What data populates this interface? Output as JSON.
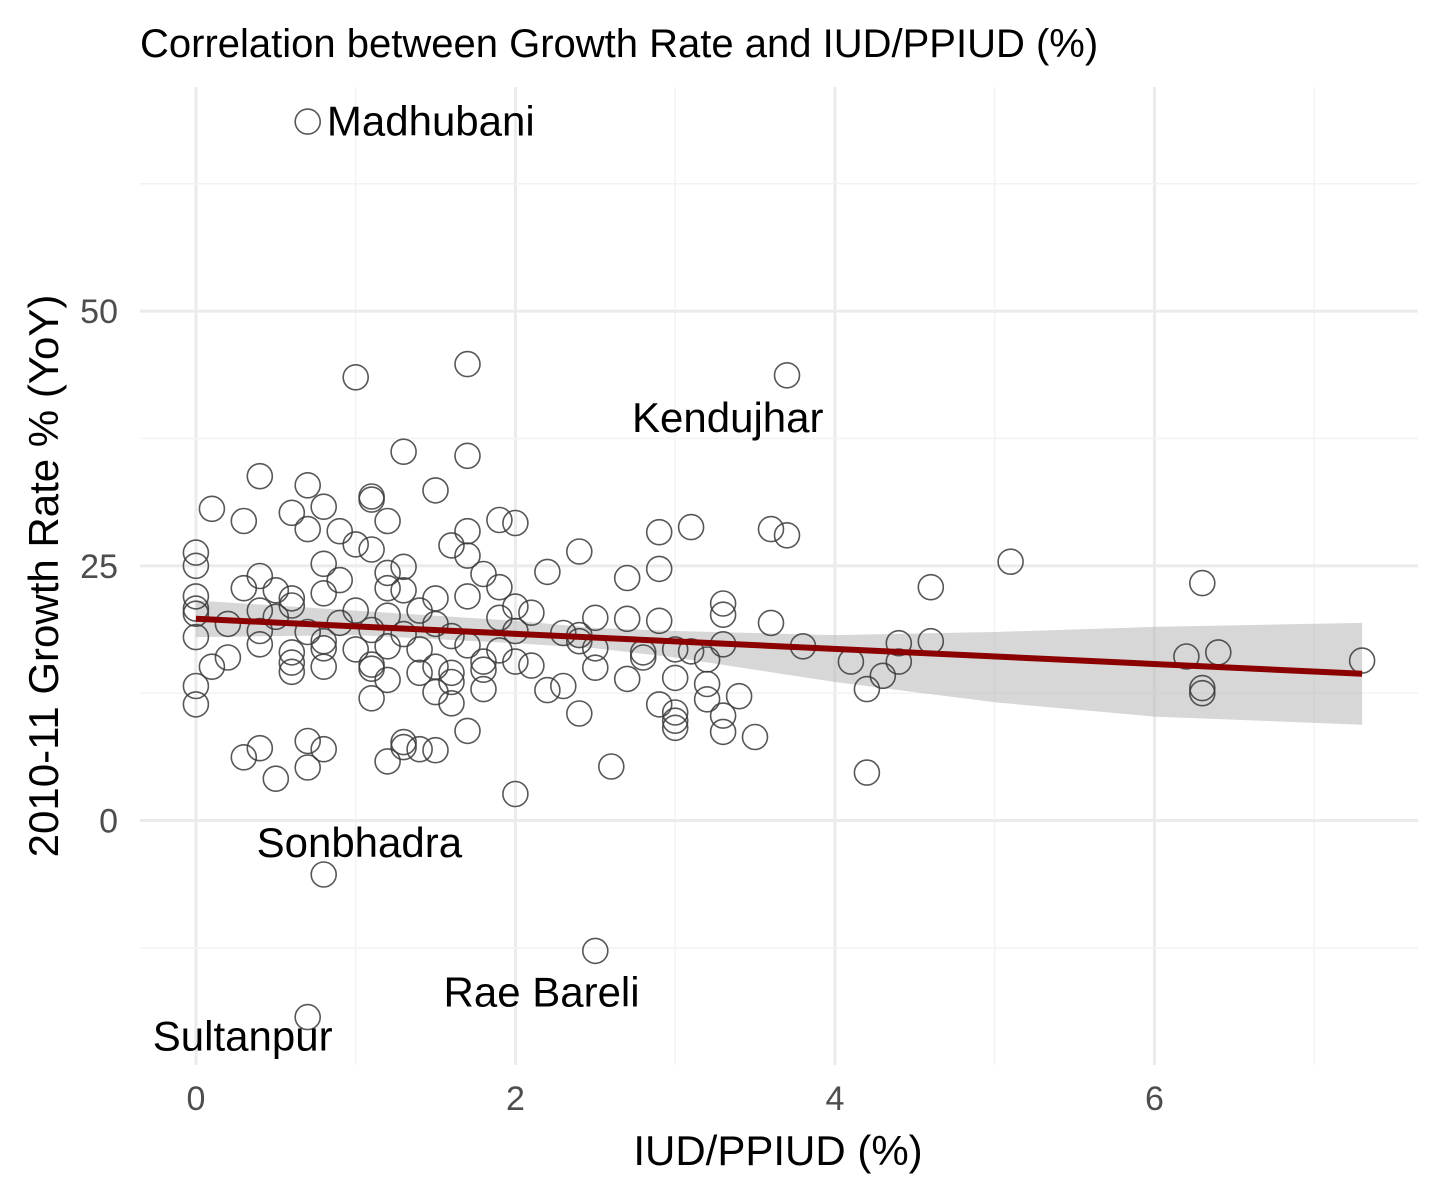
{
  "chart_data": {
    "type": "scatter",
    "title": "Correlation between Growth Rate and IUD/PPIUD (%)",
    "xlabel": "IUD/PPIUD (%)",
    "ylabel": "2010-11 Growth Rate % (YoY)",
    "xlim": [
      -0.35,
      7.65
    ],
    "ylim": [
      -24,
      72
    ],
    "xticks": [
      0,
      2,
      4,
      6
    ],
    "yticks": [
      0,
      25,
      50
    ],
    "grid": true,
    "colors": {
      "points": "#3a3a3a",
      "trend": "#8b0000",
      "ribbon": "#bdbdbd",
      "grid": "#ebebeb"
    },
    "trend": {
      "type": "linear",
      "x": [
        0,
        7.3
      ],
      "y": [
        19.8,
        14.4
      ]
    },
    "confidence_band": {
      "x": [
        0,
        1,
        2,
        2.5,
        3,
        4,
        5,
        6,
        7.3
      ],
      "lower": [
        18.0,
        18.2,
        17.4,
        16.9,
        16.0,
        13.6,
        11.6,
        10.2,
        9.4
      ],
      "upper": [
        21.6,
        20.6,
        19.6,
        18.9,
        18.6,
        18.2,
        18.5,
        19.0,
        19.4
      ]
    },
    "points": [
      [
        0.7,
        68.6
      ],
      [
        1.7,
        44.8
      ],
      [
        1.0,
        43.5
      ],
      [
        3.7,
        43.7
      ],
      [
        1.3,
        36.2
      ],
      [
        1.7,
        35.8
      ],
      [
        0.4,
        33.8
      ],
      [
        0.7,
        32.9
      ],
      [
        1.5,
        32.4
      ],
      [
        1.1,
        31.8
      ],
      [
        1.1,
        31.5
      ],
      [
        0.1,
        30.6
      ],
      [
        0.6,
        30.2
      ],
      [
        0.8,
        30.8
      ],
      [
        0.3,
        29.4
      ],
      [
        1.2,
        29.4
      ],
      [
        1.9,
        29.5
      ],
      [
        2.0,
        29.2
      ],
      [
        0.7,
        28.6
      ],
      [
        0.9,
        28.4
      ],
      [
        1.7,
        28.4
      ],
      [
        2.9,
        28.3
      ],
      [
        3.1,
        28.8
      ],
      [
        3.6,
        28.6
      ],
      [
        3.7,
        28.0
      ],
      [
        1.0,
        27.1
      ],
      [
        1.6,
        27.0
      ],
      [
        1.1,
        26.6
      ],
      [
        0.0,
        26.3
      ],
      [
        1.7,
        26.0
      ],
      [
        2.4,
        26.4
      ],
      [
        0.0,
        25.0
      ],
      [
        0.8,
        25.2
      ],
      [
        1.3,
        24.9
      ],
      [
        2.2,
        24.4
      ],
      [
        2.9,
        24.7
      ],
      [
        5.1,
        25.4
      ],
      [
        0.4,
        24.0
      ],
      [
        1.2,
        24.3
      ],
      [
        1.8,
        24.2
      ],
      [
        0.9,
        23.6
      ],
      [
        2.7,
        23.8
      ],
      [
        6.3,
        23.3
      ],
      [
        0.3,
        22.8
      ],
      [
        0.5,
        22.6
      ],
      [
        1.2,
        22.8
      ],
      [
        1.9,
        22.9
      ],
      [
        4.6,
        22.9
      ],
      [
        0.0,
        22.0
      ],
      [
        0.8,
        22.3
      ],
      [
        1.7,
        22.0
      ],
      [
        1.3,
        22.6
      ],
      [
        0.6,
        21.8
      ],
      [
        1.5,
        21.8
      ],
      [
        0.6,
        21.1
      ],
      [
        2.0,
        21.0
      ],
      [
        3.3,
        21.3
      ],
      [
        0.0,
        20.8
      ],
      [
        0.4,
        20.6
      ],
      [
        1.0,
        20.6
      ],
      [
        1.4,
        20.6
      ],
      [
        2.1,
        20.4
      ],
      [
        0.0,
        20.3
      ],
      [
        0.5,
        20.0
      ],
      [
        1.2,
        20.1
      ],
      [
        1.9,
        19.9
      ],
      [
        2.5,
        19.9
      ],
      [
        2.7,
        19.8
      ],
      [
        3.3,
        20.2
      ],
      [
        0.2,
        19.3
      ],
      [
        0.9,
        19.4
      ],
      [
        1.5,
        19.3
      ],
      [
        2.9,
        19.6
      ],
      [
        3.6,
        19.4
      ],
      [
        0.0,
        18.0
      ],
      [
        0.4,
        18.6
      ],
      [
        0.7,
        18.5
      ],
      [
        1.1,
        18.7
      ],
      [
        1.3,
        18.3
      ],
      [
        1.6,
        18.1
      ],
      [
        2.3,
        18.4
      ],
      [
        2.4,
        18.2
      ],
      [
        2.0,
        18.6
      ],
      [
        0.4,
        17.3
      ],
      [
        0.8,
        17.6
      ],
      [
        1.2,
        17.1
      ],
      [
        1.7,
        17.2
      ],
      [
        2.4,
        17.6
      ],
      [
        3.3,
        17.3
      ],
      [
        3.8,
        17.1
      ],
      [
        4.4,
        17.4
      ],
      [
        4.6,
        17.6
      ],
      [
        0.6,
        16.5
      ],
      [
        0.8,
        16.9
      ],
      [
        1.0,
        16.8
      ],
      [
        1.4,
        16.8
      ],
      [
        1.9,
        16.7
      ],
      [
        2.5,
        16.9
      ],
      [
        2.8,
        16.5
      ],
      [
        3.1,
        16.6
      ],
      [
        0.2,
        16.0
      ],
      [
        0.6,
        15.5
      ],
      [
        1.1,
        15.3
      ],
      [
        1.5,
        15.1
      ],
      [
        1.8,
        15.6
      ],
      [
        2.0,
        15.6
      ],
      [
        2.8,
        16.0
      ],
      [
        3.0,
        16.8
      ],
      [
        3.2,
        15.8
      ],
      [
        6.2,
        16.1
      ],
      [
        6.4,
        16.5
      ],
      [
        0.1,
        15.1
      ],
      [
        0.6,
        14.6
      ],
      [
        0.8,
        15.1
      ],
      [
        1.1,
        14.9
      ],
      [
        1.4,
        14.5
      ],
      [
        1.6,
        14.5
      ],
      [
        1.8,
        14.8
      ],
      [
        2.1,
        15.2
      ],
      [
        2.5,
        15.0
      ],
      [
        3.0,
        14.0
      ],
      [
        4.1,
        15.6
      ],
      [
        4.3,
        14.2
      ],
      [
        4.4,
        15.6
      ],
      [
        7.3,
        15.7
      ],
      [
        0.0,
        13.2
      ],
      [
        1.2,
        13.8
      ],
      [
        1.6,
        13.6
      ],
      [
        1.8,
        12.9
      ],
      [
        2.2,
        12.8
      ],
      [
        2.3,
        13.2
      ],
      [
        2.7,
        13.9
      ],
      [
        3.2,
        13.4
      ],
      [
        4.2,
        12.9
      ],
      [
        6.3,
        13.0
      ],
      [
        6.3,
        12.5
      ],
      [
        0.0,
        11.4
      ],
      [
        1.1,
        12.0
      ],
      [
        1.5,
        12.6
      ],
      [
        1.6,
        11.5
      ],
      [
        2.9,
        11.4
      ],
      [
        3.2,
        11.9
      ],
      [
        3.4,
        12.2
      ],
      [
        2.4,
        10.5
      ],
      [
        3.0,
        10.6
      ],
      [
        3.0,
        9.8
      ],
      [
        3.0,
        9.1
      ],
      [
        3.3,
        10.3
      ],
      [
        1.7,
        8.8
      ],
      [
        3.3,
        8.7
      ],
      [
        3.5,
        8.2
      ],
      [
        0.7,
        7.8
      ],
      [
        1.3,
        7.7
      ],
      [
        1.3,
        7.2
      ],
      [
        1.4,
        7.0
      ],
      [
        1.5,
        6.9
      ],
      [
        0.4,
        7.1
      ],
      [
        0.8,
        7.0
      ],
      [
        0.3,
        6.2
      ],
      [
        1.2,
        5.8
      ],
      [
        0.7,
        5.2
      ],
      [
        2.6,
        5.3
      ],
      [
        4.2,
        4.7
      ],
      [
        0.5,
        4.1
      ],
      [
        2.0,
        2.6
      ],
      [
        0.8,
        -5.3
      ],
      [
        2.5,
        -12.8
      ],
      [
        0.7,
        -19.3
      ]
    ],
    "annotations": [
      {
        "text": "Madhubani",
        "x": 0.82,
        "y": 68.7,
        "anchor": "start"
      },
      {
        "text": "Kendujhar",
        "x": 2.73,
        "y": 39.6,
        "anchor": "start"
      },
      {
        "text": "Sonbhadra",
        "x": 0.38,
        "y": -2.1,
        "anchor": "start"
      },
      {
        "text": "Rae Bareli",
        "x": 1.55,
        "y": -16.8,
        "anchor": "start"
      },
      {
        "text": "Sultanpur",
        "x": -0.27,
        "y": -21.1,
        "anchor": "start"
      }
    ]
  }
}
